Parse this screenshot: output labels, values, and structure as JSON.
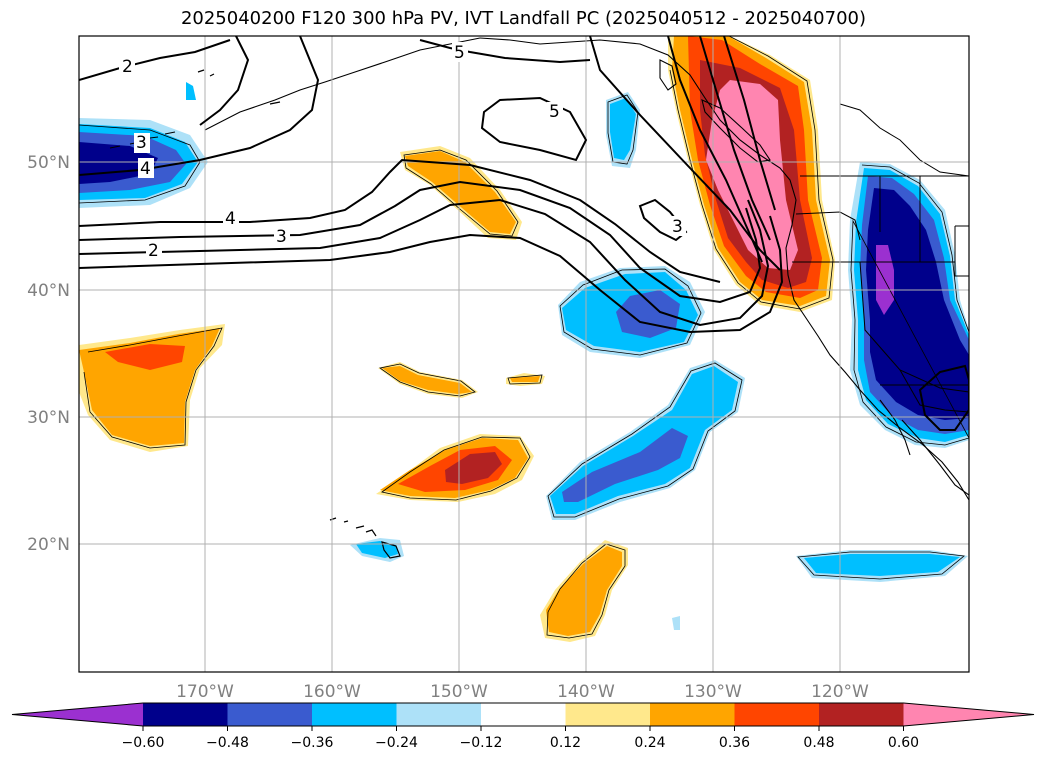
{
  "title": "2025040200 F120 300 hPa PV, IVT Landfall PC (2025040512 - 2025040700)",
  "longitude_labels": [
    "170°W",
    "160°W",
    "150°W",
    "140°W",
    "130°W",
    "120°W"
  ],
  "latitude_labels": [
    "50°N",
    "40°N",
    "30°N",
    "20°N"
  ],
  "colorbar": {
    "ticks": [
      "−0.60",
      "−0.48",
      "−0.36",
      "−0.24",
      "−0.12",
      "0.12",
      "0.24",
      "0.36",
      "0.48",
      "0.60"
    ],
    "colors": [
      "#9b30d0",
      "#00008b",
      "#3a5bcf",
      "#00bfff",
      "#ade1f8",
      "#ffffff",
      "#ffe88c",
      "#ffa500",
      "#ff4500",
      "#b22222",
      "#ff85b0"
    ]
  },
  "pv_contour_labels": [
    "2",
    "3",
    "4",
    "5",
    "5",
    "3",
    "4",
    "3",
    "2"
  ]
}
